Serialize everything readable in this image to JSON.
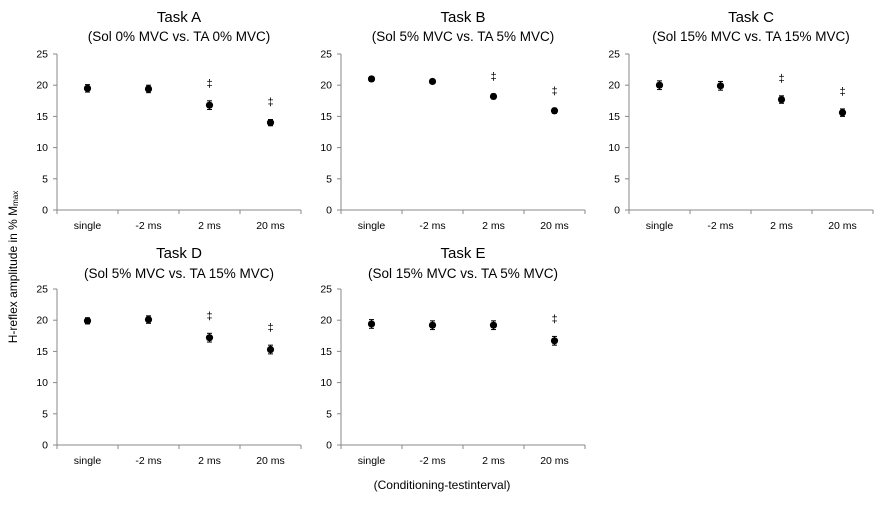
{
  "figure": {
    "ylabel_main": "H-reflex amplitude in % M",
    "ylabel_sub": "max",
    "xlabel": "(Conditioning-testinterval)",
    "colors": {
      "marker": "#000000",
      "axis": "#888888"
    }
  },
  "chart_data": [
    {
      "type": "scatter",
      "title": "Task A",
      "subtitle": "(Sol 0% MVC vs. TA 0% MVC)",
      "categories": [
        "single",
        "-2 ms",
        "2 ms",
        "20 ms"
      ],
      "values": [
        19.5,
        19.4,
        16.8,
        14.0
      ],
      "errors": [
        0.6,
        0.6,
        0.7,
        0.5
      ],
      "annotations": [
        "",
        "",
        "‡",
        "‡"
      ],
      "ylim": [
        0,
        25
      ],
      "yticks": [
        0,
        5,
        10,
        15,
        20,
        25
      ]
    },
    {
      "type": "scatter",
      "title": "Task B",
      "subtitle": "(Sol 5% MVC vs. TA 5% MVC)",
      "categories": [
        "single",
        "-2 ms",
        "2 ms",
        "20 ms"
      ],
      "values": [
        21.0,
        20.6,
        18.2,
        15.9
      ],
      "errors": [
        0.4,
        0.3,
        0.4,
        0.4
      ],
      "annotations": [
        "",
        "",
        "‡",
        "‡"
      ],
      "ylim": [
        0,
        25
      ],
      "yticks": [
        0,
        5,
        10,
        15,
        20,
        25
      ]
    },
    {
      "type": "scatter",
      "title": "Task C",
      "subtitle": "(Sol 15% MVC vs. TA 15% MVC)",
      "categories": [
        "single",
        "-2 ms",
        "2 ms",
        "20 ms"
      ],
      "values": [
        20.0,
        19.9,
        17.7,
        15.6
      ],
      "errors": [
        0.7,
        0.7,
        0.6,
        0.6
      ],
      "annotations": [
        "",
        "",
        "‡",
        "‡"
      ],
      "ylim": [
        0,
        25
      ],
      "yticks": [
        0,
        5,
        10,
        15,
        20,
        25
      ]
    },
    {
      "type": "scatter",
      "title": "Task D",
      "subtitle": "(Sol 5% MVC vs. TA 15% MVC)",
      "categories": [
        "single",
        "-2 ms",
        "2 ms",
        "20 ms"
      ],
      "values": [
        19.9,
        20.1,
        17.2,
        15.3
      ],
      "errors": [
        0.5,
        0.6,
        0.7,
        0.7
      ],
      "annotations": [
        "",
        "",
        "‡",
        "‡"
      ],
      "ylim": [
        0,
        25
      ],
      "yticks": [
        0,
        5,
        10,
        15,
        20,
        25
      ]
    },
    {
      "type": "scatter",
      "title": "Task E",
      "subtitle": "(Sol 15% MVC vs. TA 5% MVC)",
      "categories": [
        "single",
        "-2 ms",
        "2 ms",
        "20 ms"
      ],
      "values": [
        19.4,
        19.2,
        19.2,
        16.7
      ],
      "errors": [
        0.7,
        0.7,
        0.7,
        0.7
      ],
      "annotations": [
        "",
        "",
        "",
        "‡"
      ],
      "ylim": [
        0,
        25
      ],
      "yticks": [
        0,
        5,
        10,
        15,
        20,
        25
      ]
    }
  ]
}
